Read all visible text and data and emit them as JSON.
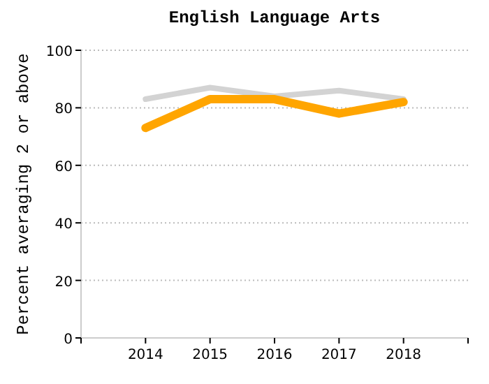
{
  "chart_data": {
    "type": "line",
    "title": "English Language Arts",
    "ylabel": "Percent averaging 2 or above",
    "x": [
      2014,
      2015,
      2016,
      2017,
      2018
    ],
    "xlim": [
      2013,
      2019
    ],
    "xticks": [
      {
        "value": 2013,
        "label": null
      },
      2014,
      2015,
      2016,
      2017,
      2018,
      {
        "value": 2019,
        "label": null
      }
    ],
    "ylim": [
      0,
      100
    ],
    "yticks": [
      0,
      20,
      40,
      60,
      80,
      100
    ],
    "grid": "y",
    "marker": "none",
    "line_style": "solid",
    "series": [
      {
        "color": "#d3d3d3",
        "values": [
          83,
          87,
          84,
          86,
          83
        ]
      },
      {
        "color": "#ffa500",
        "values": [
          73,
          83,
          83,
          78,
          82
        ]
      }
    ]
  }
}
